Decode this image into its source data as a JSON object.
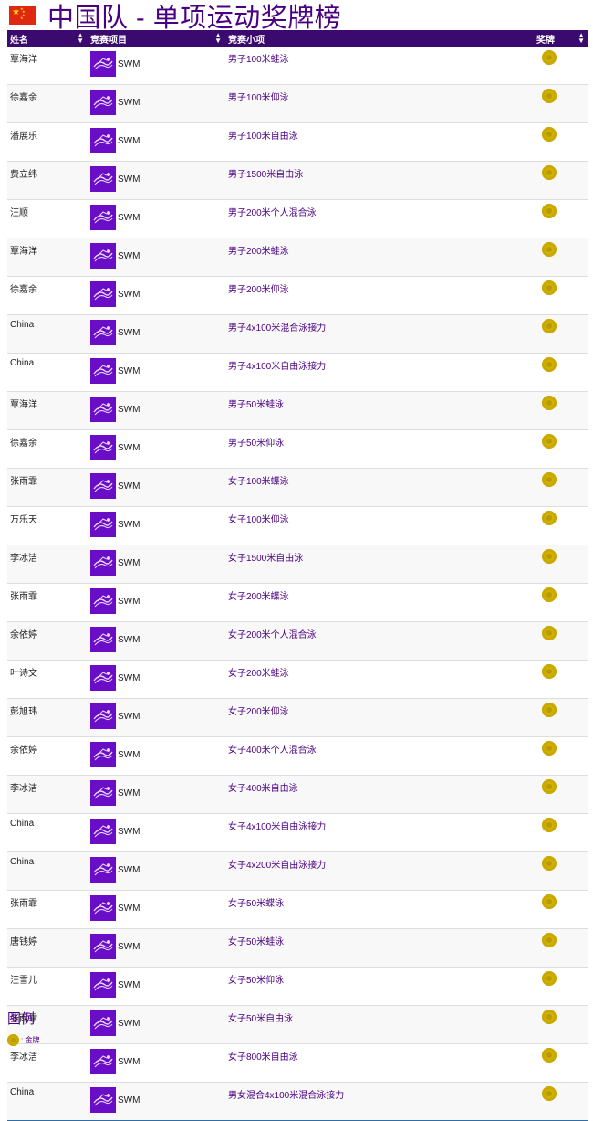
{
  "page": {
    "title": "中国队 - 单项运动奖牌榜",
    "flag": "china-flag-icon"
  },
  "table": {
    "headers": {
      "name": "姓名",
      "sport": "竞赛项目",
      "event": "竞赛小项",
      "medal": "奖牌"
    },
    "rows": [
      {
        "name": "覃海洋",
        "sport": "SWM",
        "event": "男子100米蛙泳",
        "medal": "gold"
      },
      {
        "name": "徐嘉余",
        "sport": "SWM",
        "event": "男子100米仰泳",
        "medal": "gold"
      },
      {
        "name": "潘展乐",
        "sport": "SWM",
        "event": "男子100米自由泳",
        "medal": "gold"
      },
      {
        "name": "费立纬",
        "sport": "SWM",
        "event": "男子1500米自由泳",
        "medal": "gold"
      },
      {
        "name": "汪顺",
        "sport": "SWM",
        "event": "男子200米个人混合泳",
        "medal": "gold"
      },
      {
        "name": "覃海洋",
        "sport": "SWM",
        "event": "男子200米蛙泳",
        "medal": "gold"
      },
      {
        "name": "徐嘉余",
        "sport": "SWM",
        "event": "男子200米仰泳",
        "medal": "gold"
      },
      {
        "name": "China",
        "sport": "SWM",
        "event": "男子4x100米混合泳接力",
        "medal": "gold"
      },
      {
        "name": "China",
        "sport": "SWM",
        "event": "男子4x100米自由泳接力",
        "medal": "gold"
      },
      {
        "name": "覃海洋",
        "sport": "SWM",
        "event": "男子50米蛙泳",
        "medal": "gold"
      },
      {
        "name": "徐嘉余",
        "sport": "SWM",
        "event": "男子50米仰泳",
        "medal": "gold"
      },
      {
        "name": "张雨霏",
        "sport": "SWM",
        "event": "女子100米蝶泳",
        "medal": "gold"
      },
      {
        "name": "万乐天",
        "sport": "SWM",
        "event": "女子100米仰泳",
        "medal": "gold"
      },
      {
        "name": "李冰洁",
        "sport": "SWM",
        "event": "女子1500米自由泳",
        "medal": "gold"
      },
      {
        "name": "张雨霏",
        "sport": "SWM",
        "event": "女子200米蝶泳",
        "medal": "gold"
      },
      {
        "name": "余依婷",
        "sport": "SWM",
        "event": "女子200米个人混合泳",
        "medal": "gold"
      },
      {
        "name": "叶诗文",
        "sport": "SWM",
        "event": "女子200米蛙泳",
        "medal": "gold"
      },
      {
        "name": "彭旭玮",
        "sport": "SWM",
        "event": "女子200米仰泳",
        "medal": "gold"
      },
      {
        "name": "余依婷",
        "sport": "SWM",
        "event": "女子400米个人混合泳",
        "medal": "gold"
      },
      {
        "name": "李冰洁",
        "sport": "SWM",
        "event": "女子400米自由泳",
        "medal": "gold"
      },
      {
        "name": "China",
        "sport": "SWM",
        "event": "女子4x100米自由泳接力",
        "medal": "gold"
      },
      {
        "name": "China",
        "sport": "SWM",
        "event": "女子4x200米自由泳接力",
        "medal": "gold"
      },
      {
        "name": "张雨霏",
        "sport": "SWM",
        "event": "女子50米蝶泳",
        "medal": "gold"
      },
      {
        "name": "唐钱婷",
        "sport": "SWM",
        "event": "女子50米蛙泳",
        "medal": "gold"
      },
      {
        "name": "汪雪儿",
        "sport": "SWM",
        "event": "女子50米仰泳",
        "medal": "gold"
      },
      {
        "name": "张雨霏",
        "sport": "SWM",
        "event": "女子50米自由泳",
        "medal": "gold"
      },
      {
        "name": "李冰洁",
        "sport": "SWM",
        "event": "女子800米自由泳",
        "medal": "gold"
      },
      {
        "name": "China",
        "sport": "SWM",
        "event": "男女混合4x100米混合泳接力",
        "medal": "gold"
      }
    ]
  },
  "legend": {
    "title": "图例",
    "items": [
      {
        "icon": "gold-medal-icon",
        "label": ": 金牌"
      }
    ]
  },
  "colors": {
    "header_bg": "#3b0a6e",
    "accent": "#4b0082",
    "sport_icon_bg": "#6a0dc6",
    "gold": "#d4b000"
  }
}
